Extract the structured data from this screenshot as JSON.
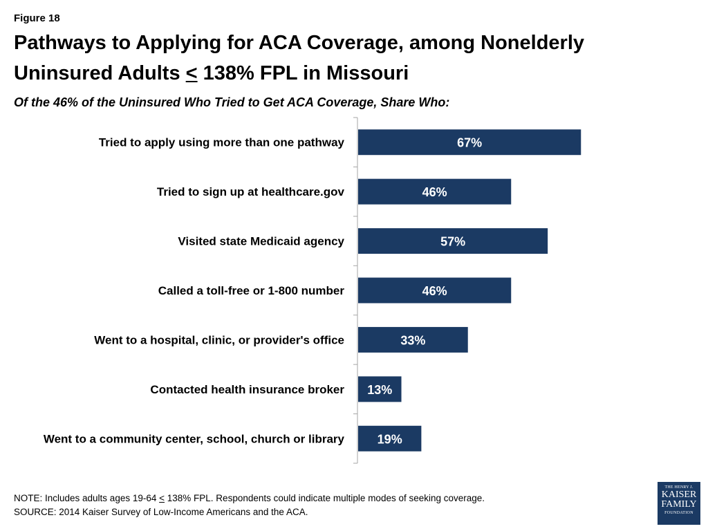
{
  "figure_label": "Figure 18",
  "title": {
    "line1": "Pathways to Applying for ACA Coverage, among Nonelderly",
    "line2_pre": "Uninsured Adults ",
    "line2_symbol": "<",
    "line2_post": " 138% FPL in Missouri"
  },
  "notes": {
    "note_pre": "NOTE: Includes adults ages 19-64 ",
    "note_symbol": "<",
    "note_post": " 138% FPL. Respondents could indicate multiple modes of seeking coverage.",
    "source": "SOURCE: 2014 Kaiser Survey of Low-Income Americans and the ACA."
  },
  "logo": {
    "line1": "THE HENRY J.",
    "line2": "KAISER",
    "line3": "FAMILY",
    "line4": "FOUNDATION"
  },
  "colors": {
    "bar": "#1b3a63",
    "axis": "#a6a6a6"
  },
  "chart_data": {
    "type": "bar",
    "orientation": "horizontal",
    "title": "Of the 46% of the Uninsured Who Tried to Get ACA Coverage, Share Who:",
    "categories": [
      "Tried to apply using more than one pathway",
      "Tried to sign up at healthcare.gov",
      "Visited state Medicaid agency",
      "Called a toll-free or 1-800 number",
      "Went to a hospital, clinic, or provider's office",
      "Contacted health insurance broker",
      "Went to a community center, school, church or library"
    ],
    "values": [
      67,
      46,
      57,
      46,
      33,
      13,
      19
    ],
    "value_labels": [
      "67%",
      "46%",
      "57%",
      "46%",
      "33%",
      "13%",
      "19%"
    ],
    "xlim": [
      0,
      100
    ],
    "grid": false,
    "legend": "none"
  }
}
